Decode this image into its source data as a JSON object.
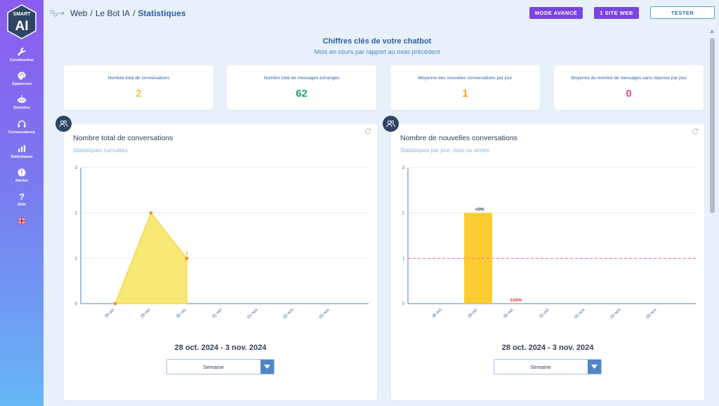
{
  "sidebar": {
    "logo_top": "SMART",
    "logo_main": "AI",
    "items": [
      {
        "label": "Construction",
        "icon": "wrench-icon"
      },
      {
        "label": "Apparence",
        "icon": "palette-icon"
      },
      {
        "label": "Données",
        "icon": "robot-icon"
      },
      {
        "label": "Conversations",
        "icon": "headset-icon"
      },
      {
        "label": "Statistiques",
        "icon": "bar-chart-icon"
      },
      {
        "label": "Alertes",
        "icon": "alert-icon"
      },
      {
        "label": "Aide",
        "icon": "help-icon"
      },
      {
        "label": "",
        "icon": "uk-flag-icon"
      }
    ]
  },
  "header": {
    "breadcrumb": [
      "Web",
      "Le Bot IA",
      "Statistiques"
    ],
    "separator": "/",
    "buttons": {
      "advanced": "MODE AVANCÉ",
      "site": "1 SITE WEB",
      "test": "TESTER"
    }
  },
  "kpis": {
    "title": "Chiffres clés de votre chatbot",
    "subtitle": "Mois en cours par rapport au mois précédent",
    "cards": [
      {
        "label": "Nombre total de conversations",
        "value": "2",
        "color": "#f5c342"
      },
      {
        "label": "Nombre total de messages échangés",
        "value": "62",
        "color": "#1fa07a"
      },
      {
        "label": "Moyenne des nouvelles conversations par jour",
        "value": "1",
        "color": "#f0a020"
      },
      {
        "label": "Moyenne du nombre de messages sans réponse par jour",
        "value": "0",
        "color": "#f0457a"
      }
    ]
  },
  "charts": {
    "left": {
      "title": "Nombre total de conversations",
      "subtitle": "Statistiques cumulées",
      "range": "28 oct. 2024 - 3 nov. 2024",
      "period": "Semaine"
    },
    "right": {
      "title": "Nombre de nouvelles conversations",
      "subtitle": "Statistiques par jour, mois ou année",
      "range": "28 oct. 2024 - 3 nov. 2024",
      "period": "Semaine"
    }
  },
  "chart_data": [
    {
      "type": "area",
      "categories": [
        "28 oct.",
        "29 oct.",
        "30 oct.",
        "31 oct.",
        "01 nov.",
        "02 nov.",
        "03 nov."
      ],
      "values": [
        0,
        2,
        1,
        null,
        null,
        null,
        null
      ],
      "point_labels": [
        "",
        "",
        "1",
        "",
        "",
        "",
        ""
      ],
      "ylim": [
        0,
        3
      ],
      "yticks": [
        0,
        1,
        2,
        3
      ],
      "grid": true,
      "color": "#f7e45c"
    },
    {
      "type": "bar",
      "categories": [
        "28 oct.",
        "29 oct.",
        "30 oct.",
        "31 oct.",
        "01 nov.",
        "02 nov.",
        "03 nov."
      ],
      "values": [
        0,
        2,
        0,
        0,
        0,
        0,
        0
      ],
      "data_labels": [
        "",
        "+0%",
        "-100%",
        "",
        "",
        "",
        ""
      ],
      "average_line": 1,
      "ylim": [
        0,
        3
      ],
      "yticks": [
        0,
        1,
        2,
        3
      ],
      "grid": true,
      "color": "#fccc35"
    }
  ]
}
